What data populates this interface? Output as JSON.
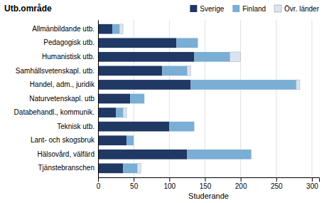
{
  "chart_data": {
    "type": "bar",
    "orientation": "horizontal",
    "stacked": true,
    "title": "Utb.område",
    "xlabel": "Studerande",
    "categories": [
      "Allmänbildande utb.",
      "Pedagogisk utb.",
      "Humanistisk utb.",
      "Samhällsvetenskapl. utb.",
      "Handel, adm., juridik",
      "Naturvetenskapl. utb",
      "Databehandl., kommunik.",
      "Teknisk utb.",
      "Lant- och skogsbruk",
      "Hälsovård, välfärd",
      "Tjänstebranschen"
    ],
    "series": [
      {
        "name": "Sverige",
        "color": "#1f3864",
        "values": [
          20,
          110,
          135,
          90,
          130,
          45,
          25,
          100,
          40,
          125,
          35
        ]
      },
      {
        "name": "Finland",
        "color": "#7aaed4",
        "values": [
          10,
          30,
          50,
          35,
          148,
          20,
          10,
          35,
          10,
          90,
          20
        ]
      },
      {
        "name": "Övr. länder",
        "color": "#d9e4f0",
        "values": [
          5,
          0,
          15,
          5,
          5,
          0,
          5,
          0,
          0,
          0,
          5
        ]
      }
    ],
    "xlim": [
      0,
      310
    ],
    "xticks": [
      0,
      50,
      100,
      150,
      200,
      250,
      300
    ],
    "grid": true,
    "legend": "upper right"
  }
}
